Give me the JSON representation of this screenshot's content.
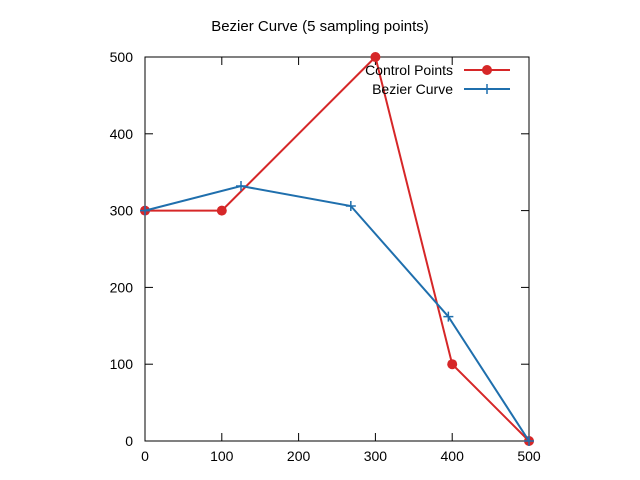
{
  "chart_data": {
    "type": "line",
    "title": "Bezier Curve (5 sampling points)",
    "xlabel": "",
    "ylabel": "",
    "xlim": [
      0,
      500
    ],
    "ylim": [
      0,
      500
    ],
    "xticks": [
      0,
      100,
      200,
      300,
      400,
      500
    ],
    "yticks": [
      0,
      100,
      200,
      300,
      400,
      500
    ],
    "grid": false,
    "legend_position": "top-right",
    "series": [
      {
        "name": "Control Points",
        "color": "#d62728",
        "marker": "circle",
        "x": [
          0,
          100,
          300,
          400,
          500
        ],
        "y": [
          300,
          300,
          500,
          100,
          0
        ]
      },
      {
        "name": "Bezier Curve",
        "color": "#1f6fad",
        "marker": "plus",
        "x": [
          0,
          125,
          268,
          395,
          500
        ],
        "y": [
          300,
          332,
          306,
          162,
          0
        ]
      }
    ]
  }
}
